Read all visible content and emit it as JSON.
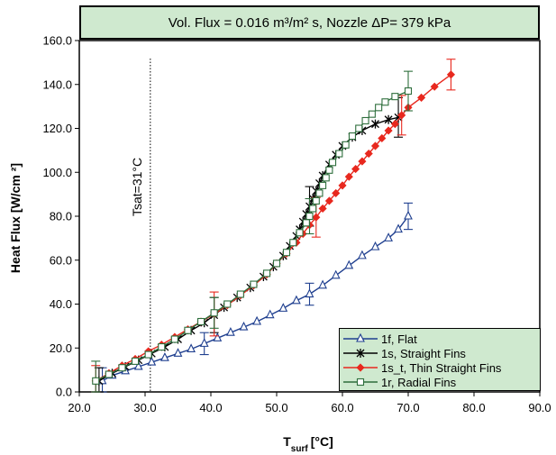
{
  "chart_data": {
    "type": "line",
    "title": "Vol. Flux = 0.016 m³/m² s,  Nozzle ΔP= 379 kPa",
    "xlabel": "T_surf [°C]",
    "ylabel": "Heat Flux [W/cm ²]",
    "xlim": [
      20,
      90
    ],
    "ylim": [
      0,
      160
    ],
    "x_ticks": [
      "20.0",
      "30.0",
      "40.0",
      "50.0",
      "60.0",
      "70.0",
      "80.0",
      "90.0"
    ],
    "y_ticks": [
      "0.0",
      "20.0",
      "40.0",
      "60.0",
      "80.0",
      "100.0",
      "120.0",
      "140.0",
      "160.0"
    ],
    "annotation": {
      "text": "Tsat=31°C",
      "x": 30.8
    },
    "legend_position": "bottom-right",
    "series": [
      {
        "name": "1f, Flat",
        "color": "#1f3f8f",
        "marker": "triangle",
        "x": [
          23.5,
          25,
          27,
          29,
          31,
          33,
          35,
          37,
          39,
          41,
          43,
          45,
          47,
          49,
          51,
          53,
          55,
          57,
          59,
          61,
          63,
          65,
          67,
          68.5,
          70
        ],
        "y": [
          5,
          7.5,
          9.5,
          11.5,
          13.5,
          15.5,
          17.5,
          19.5,
          22,
          24.5,
          27,
          29.5,
          32,
          35,
          38,
          41.5,
          44.5,
          48.5,
          53,
          57.5,
          62,
          66,
          70,
          74,
          80
        ],
        "error_bars": [
          {
            "x": 23.5,
            "y": 5,
            "err": 6
          },
          {
            "x": 39,
            "y": 22,
            "err": 5
          },
          {
            "x": 55,
            "y": 44.5,
            "err": 5
          },
          {
            "x": 70,
            "y": 80,
            "err": 6
          }
        ]
      },
      {
        "name": "1s, Straight Fins",
        "color": "#000000",
        "marker": "star",
        "x": [
          23,
          25,
          27,
          29,
          31,
          33,
          35,
          37,
          39,
          40.5,
          42,
          44,
          46,
          48,
          49.5,
          51,
          52,
          53,
          53.5,
          54,
          54.5,
          55,
          55.5,
          56,
          56.5,
          57,
          58,
          59,
          60,
          61.5,
          63,
          65,
          67,
          68.5
        ],
        "y": [
          5,
          8.5,
          11.5,
          14.5,
          17.5,
          20.5,
          24,
          28,
          31.5,
          35,
          38.5,
          43,
          47.5,
          52.5,
          57,
          62,
          66.5,
          71,
          74,
          77.5,
          81,
          84.5,
          88,
          91.5,
          95,
          98.5,
          103.5,
          108,
          112,
          116,
          119,
          122,
          124,
          125
        ],
        "error_bars": [
          {
            "x": 23,
            "y": 5,
            "err": 6
          },
          {
            "x": 40.5,
            "y": 35,
            "err": 8
          },
          {
            "x": 55,
            "y": 84.5,
            "err": 9
          },
          {
            "x": 68.5,
            "y": 125,
            "err": 9
          }
        ]
      },
      {
        "name": "1s_t, Thin Straight Fins",
        "color": "#e8281e",
        "marker": "diamond",
        "x": [
          22.5,
          24.5,
          26.5,
          28.5,
          30.5,
          32.5,
          34.5,
          36.5,
          38.5,
          40.5,
          42.5,
          44.5,
          46.5,
          48.5,
          50,
          51.5,
          53,
          54,
          55,
          56,
          57,
          58,
          59,
          60,
          61,
          62,
          63,
          64,
          65,
          66,
          67,
          68,
          69,
          70,
          72,
          74,
          76.5
        ],
        "y": [
          5,
          8.5,
          12,
          15,
          18.5,
          21.5,
          25,
          28.5,
          32,
          35.5,
          39.5,
          44,
          48.5,
          53.5,
          58.5,
          63,
          68,
          72,
          76,
          79.5,
          83.5,
          87,
          90.5,
          94,
          98,
          101.5,
          105,
          108.5,
          112,
          115.5,
          119,
          122,
          126,
          129.5,
          134,
          139,
          144.5
        ],
        "error_bars": [
          {
            "x": 22.5,
            "y": 5,
            "err": 7
          },
          {
            "x": 40.5,
            "y": 35.5,
            "err": 10
          },
          {
            "x": 56,
            "y": 79.5,
            "err": 9
          },
          {
            "x": 69,
            "y": 126,
            "err": 9
          },
          {
            "x": 76.5,
            "y": 144.5,
            "err": 7
          }
        ]
      },
      {
        "name": "1r, Radial Fins",
        "color": "#2e6e3c",
        "marker": "square",
        "x": [
          22.5,
          24.5,
          26.5,
          28.5,
          30.5,
          32.5,
          34.5,
          36.5,
          38.5,
          40.5,
          42.5,
          44.5,
          46.5,
          48.5,
          50,
          51.5,
          52.5,
          53.5,
          54.5,
          55,
          55.5,
          56,
          56.5,
          57,
          57.5,
          58,
          58.5,
          59.5,
          60.5,
          61.5,
          62.5,
          63.5,
          64.5,
          65.5,
          66.5,
          68,
          70
        ],
        "y": [
          5,
          8,
          11,
          14,
          17,
          20.5,
          24,
          28,
          32,
          36,
          40,
          44.5,
          49,
          54,
          58.5,
          63.5,
          68,
          72.5,
          77,
          80,
          83.5,
          87,
          90.5,
          94,
          97.5,
          101,
          104.5,
          108.5,
          112.5,
          116.5,
          120,
          123.5,
          126.5,
          129.5,
          132,
          134.5,
          137
        ],
        "error_bars": [
          {
            "x": 22.5,
            "y": 5,
            "err": 9
          },
          {
            "x": 40.5,
            "y": 36,
            "err": 7
          },
          {
            "x": 55,
            "y": 80,
            "err": 8
          },
          {
            "x": 70,
            "y": 137,
            "err": 9
          }
        ]
      }
    ]
  }
}
